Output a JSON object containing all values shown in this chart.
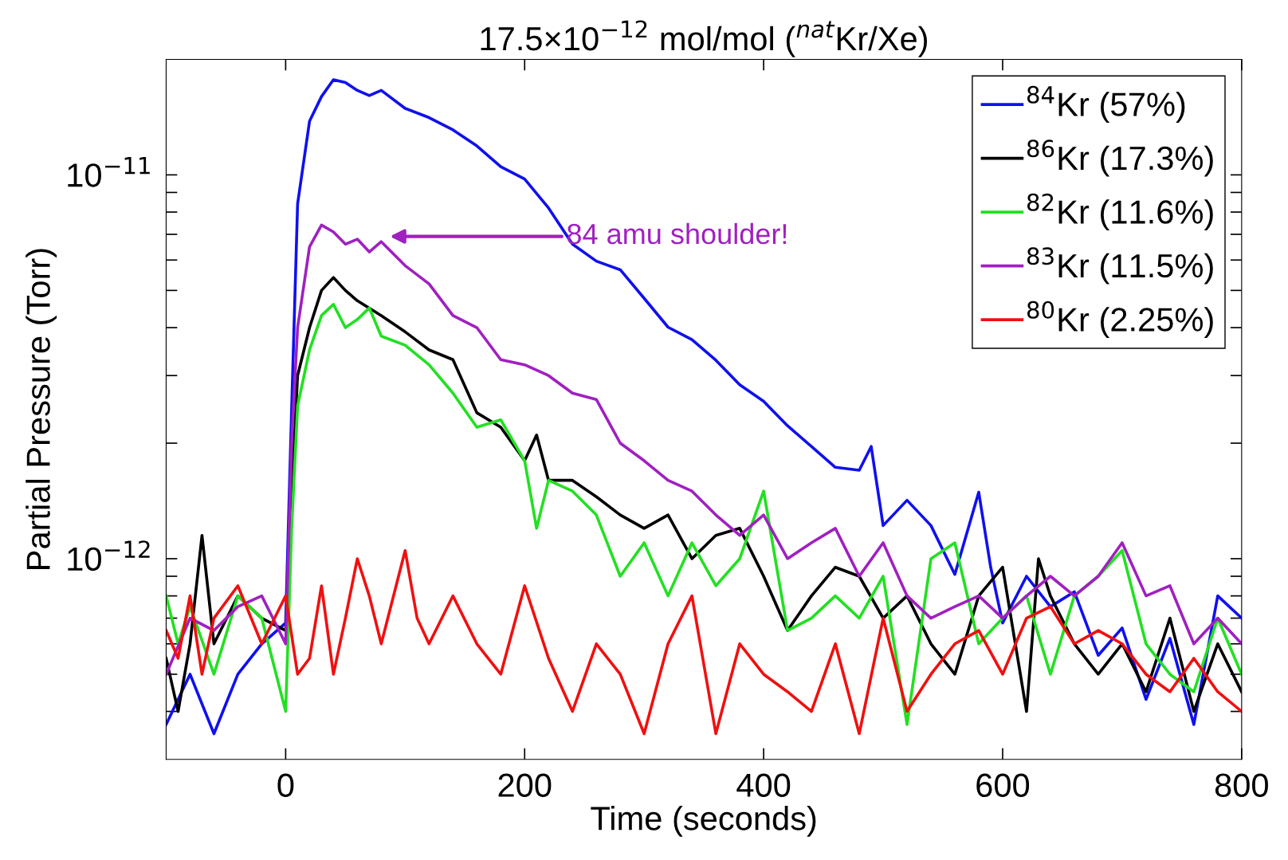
{
  "chart_data": {
    "type": "line",
    "title": "17.5×10$^{−12}$ mol/mol ($^{nat}$Kr/Xe)",
    "xlabel": "Time (seconds)",
    "ylabel": "Partial Pressure (Torr)",
    "log": "y",
    "legend": "top right",
    "grid": false,
    "line_style": "solid",
    "marker": "none",
    "xlim": [
      -100,
      800
    ],
    "xticks": [
      0,
      200,
      400,
      600,
      800
    ],
    "ylim": [
      3e-13,
      2e-11
    ],
    "yticks": [
      {
        "value": 4e-13,
        "label": null
      },
      {
        "value": 5e-13,
        "label": null
      },
      {
        "value": 6e-13,
        "label": null
      },
      {
        "value": 7e-13,
        "label": null
      },
      {
        "value": 8e-13,
        "label": null
      },
      {
        "value": 9e-13,
        "label": null
      },
      {
        "value": 1e-12,
        "label": "10$^{−12}$"
      },
      {
        "value": 2e-12,
        "label": null
      },
      {
        "value": 3e-12,
        "label": null
      },
      {
        "value": 4e-12,
        "label": null
      },
      {
        "value": 5e-12,
        "label": null
      },
      {
        "value": 6e-12,
        "label": null
      },
      {
        "value": 7e-12,
        "label": null
      },
      {
        "value": 8e-12,
        "label": null
      },
      {
        "value": 9e-12,
        "label": null
      },
      {
        "value": 1e-11,
        "label": "10$^{−11}$"
      }
    ],
    "annotations": [
      "84 amu shoulder!"
    ],
    "series": [
      {
        "name": "$^{84}$Kr (57%)",
        "color": "#1010f0",
        "x": [
          -100,
          -80,
          -60,
          -40,
          -20,
          0,
          5,
          10,
          20,
          30,
          40,
          50,
          60,
          70,
          80,
          100,
          120,
          140,
          160,
          180,
          200,
          220,
          240,
          260,
          280,
          300,
          320,
          340,
          360,
          380,
          400,
          420,
          440,
          460,
          480,
          490,
          500,
          520,
          540,
          560,
          580,
          590,
          600,
          620,
          640,
          660,
          680,
          700,
          720,
          740,
          760,
          780,
          800
        ],
        "values": [
          3.7e-13,
          5e-13,
          3.5e-13,
          5e-13,
          6e-13,
          6.8e-13,
          2.45e-12,
          8.4e-12,
          1.38e-11,
          1.6e-11,
          1.77e-11,
          1.74e-11,
          1.66e-11,
          1.61e-11,
          1.66e-11,
          1.49e-11,
          1.41e-11,
          1.31e-11,
          1.19e-11,
          1.05e-11,
          9.75e-12,
          8.2e-12,
          6.6e-12,
          5.96e-12,
          5.66e-12,
          4.77e-12,
          4.01e-12,
          3.72e-12,
          3.29e-12,
          2.84e-12,
          2.57e-12,
          2.22e-12,
          1.96e-12,
          1.73e-12,
          1.7e-12,
          1.96e-12,
          1.22e-12,
          1.42e-12,
          1.22e-12,
          9.1e-13,
          1.49e-12,
          9.5e-13,
          6.8e-13,
          9e-13,
          7.5e-13,
          8.2e-13,
          5.6e-13,
          6.6e-13,
          4.3e-13,
          6.2e-13,
          3.7e-13,
          8e-13,
          7e-13
        ]
      },
      {
        "name": "$^{86}$Kr (17.3%)",
        "color": "#000000",
        "x": [
          -100,
          -90,
          -80,
          -70,
          -60,
          -40,
          -20,
          0,
          5,
          10,
          20,
          30,
          40,
          50,
          60,
          80,
          100,
          120,
          140,
          160,
          180,
          200,
          210,
          220,
          240,
          260,
          280,
          300,
          320,
          340,
          360,
          380,
          400,
          420,
          440,
          460,
          480,
          500,
          520,
          540,
          560,
          580,
          600,
          620,
          630,
          640,
          660,
          680,
          700,
          720,
          740,
          760,
          780,
          800
        ],
        "values": [
          5.5e-13,
          4e-13,
          6e-13,
          1.15e-12,
          6e-13,
          8e-13,
          7e-13,
          6.5e-13,
          1.5e-12,
          3e-12,
          4e-12,
          5e-12,
          5.4e-12,
          5e-12,
          4.7e-12,
          4.3e-12,
          3.9e-12,
          3.5e-12,
          3.3e-12,
          2.4e-12,
          2.2e-12,
          1.8e-12,
          2.1e-12,
          1.6e-12,
          1.6e-12,
          1.45e-12,
          1.3e-12,
          1.2e-12,
          1.3e-12,
          1e-12,
          1.15e-12,
          1.2e-12,
          9e-13,
          6.5e-13,
          8e-13,
          9.5e-13,
          9e-13,
          7e-13,
          8e-13,
          6e-13,
          5e-13,
          8e-13,
          9.5e-13,
          4e-13,
          1e-12,
          8e-13,
          6e-13,
          5e-13,
          6e-13,
          4.5e-13,
          7e-13,
          4e-13,
          6e-13,
          4.5e-13
        ]
      },
      {
        "name": "$^{82}$Kr (11.6%)",
        "color": "#22e022",
        "x": [
          -100,
          -90,
          -80,
          -60,
          -40,
          -20,
          0,
          5,
          10,
          20,
          30,
          40,
          50,
          60,
          70,
          80,
          100,
          120,
          140,
          160,
          180,
          200,
          210,
          220,
          240,
          260,
          280,
          300,
          320,
          340,
          360,
          380,
          400,
          420,
          440,
          460,
          480,
          500,
          520,
          540,
          560,
          580,
          600,
          620,
          640,
          660,
          680,
          700,
          720,
          740,
          760,
          780,
          800
        ],
        "values": [
          8e-13,
          6e-13,
          7.5e-13,
          5e-13,
          8e-13,
          7e-13,
          4e-13,
          1.2e-12,
          2.5e-12,
          3.5e-12,
          4.3e-12,
          4.6e-12,
          4e-12,
          4.2e-12,
          4.5e-12,
          3.8e-12,
          3.6e-12,
          3.2e-12,
          2.7e-12,
          2.2e-12,
          2.3e-12,
          1.8e-12,
          1.2e-12,
          1.6e-12,
          1.5e-12,
          1.3e-12,
          9e-13,
          1.1e-12,
          8e-13,
          1.1e-12,
          8.5e-13,
          1e-12,
          1.5e-12,
          6.5e-13,
          7e-13,
          8e-13,
          7e-13,
          9e-13,
          3.7e-13,
          1e-12,
          1.1e-12,
          6e-13,
          7e-13,
          8e-13,
          5e-13,
          8e-13,
          9e-13,
          1.05e-12,
          6e-13,
          5e-13,
          4.5e-13,
          7e-13,
          5e-13
        ]
      },
      {
        "name": "$^{83}$Kr (11.5%)",
        "color": "#a020c0",
        "x": [
          -100,
          -80,
          -60,
          -40,
          -20,
          0,
          5,
          10,
          20,
          30,
          40,
          50,
          60,
          70,
          80,
          100,
          120,
          140,
          160,
          180,
          200,
          220,
          240,
          260,
          280,
          300,
          320,
          340,
          360,
          380,
          400,
          420,
          440,
          460,
          480,
          500,
          520,
          540,
          560,
          580,
          600,
          620,
          640,
          660,
          680,
          700,
          720,
          740,
          760,
          780,
          800
        ],
        "values": [
          5e-13,
          7e-13,
          6.5e-13,
          7.5e-13,
          8e-13,
          6e-13,
          2e-12,
          4e-12,
          6.5e-12,
          7.4e-12,
          7.1e-12,
          6.6e-12,
          6.8e-12,
          6.3e-12,
          6.7e-12,
          5.8e-12,
          5.2e-12,
          4.3e-12,
          4e-12,
          3.3e-12,
          3.2e-12,
          3e-12,
          2.7e-12,
          2.6e-12,
          2e-12,
          1.8e-12,
          1.6e-12,
          1.5e-12,
          1.3e-12,
          1.15e-12,
          1.3e-12,
          1e-12,
          1.1e-12,
          1.2e-12,
          9e-13,
          1.1e-12,
          8e-13,
          7e-13,
          7.5e-13,
          8e-13,
          7e-13,
          8e-13,
          9e-13,
          8e-13,
          9e-13,
          1.1e-12,
          8e-13,
          8.5e-13,
          6e-13,
          7e-13,
          6e-13
        ]
      },
      {
        "name": "$^{80}$Kr (2.25%)",
        "color": "#f01010",
        "x": [
          -100,
          -90,
          -80,
          -70,
          -60,
          -40,
          -20,
          0,
          10,
          20,
          30,
          40,
          50,
          60,
          70,
          80,
          100,
          110,
          120,
          140,
          160,
          180,
          200,
          220,
          240,
          260,
          280,
          300,
          320,
          340,
          360,
          380,
          400,
          420,
          440,
          460,
          480,
          500,
          520,
          540,
          560,
          580,
          600,
          620,
          640,
          660,
          680,
          700,
          720,
          740,
          760,
          780,
          800
        ],
        "values": [
          6.5e-13,
          5.5e-13,
          8e-13,
          5e-13,
          7e-13,
          8.5e-13,
          6e-13,
          8e-13,
          5e-13,
          5.5e-13,
          8.5e-13,
          5e-13,
          7e-13,
          1e-12,
          8e-13,
          6e-13,
          1.05e-12,
          7e-13,
          6e-13,
          8e-13,
          6e-13,
          5e-13,
          8.5e-13,
          5.5e-13,
          4e-13,
          6e-13,
          5e-13,
          3.5e-13,
          6e-13,
          8e-13,
          3.5e-13,
          6e-13,
          5e-13,
          4.5e-13,
          4e-13,
          6e-13,
          3.5e-13,
          7e-13,
          4e-13,
          5e-13,
          6e-13,
          6.5e-13,
          5e-13,
          7e-13,
          7.5e-13,
          6e-13,
          6.5e-13,
          6e-13,
          5e-13,
          4.5e-13,
          5.5e-13,
          4.5e-13,
          4e-13
        ]
      }
    ]
  }
}
